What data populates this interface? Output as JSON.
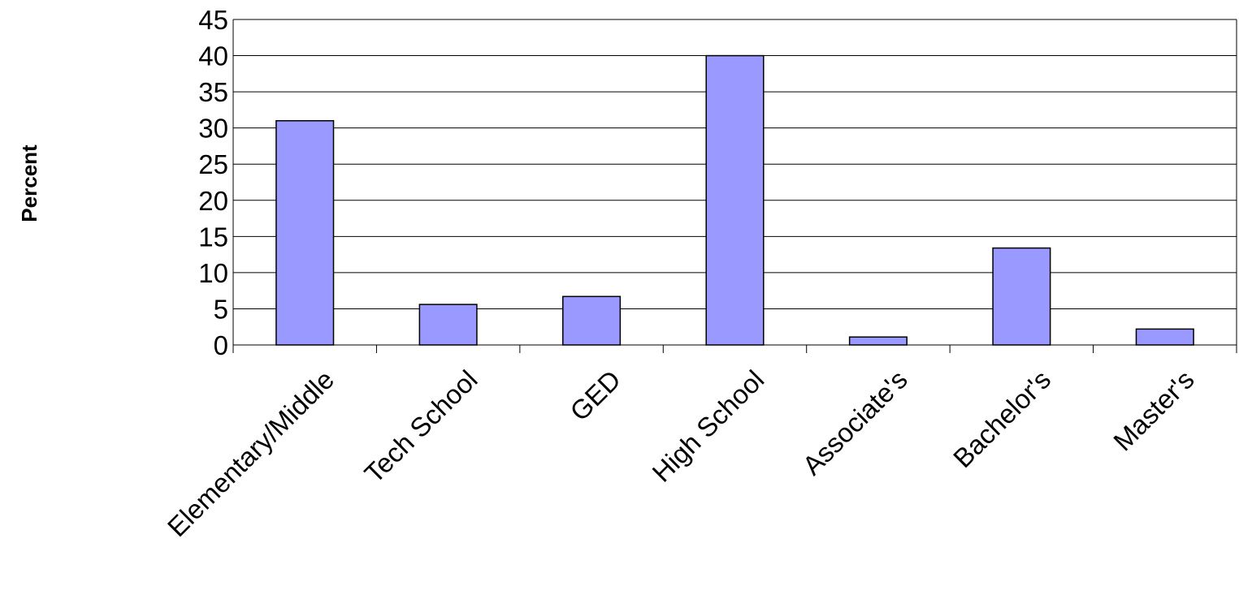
{
  "chart_data": {
    "type": "bar",
    "title": "",
    "xlabel": "",
    "ylabel": "Percent",
    "categories": [
      "Elementary/Middle",
      "Tech School",
      "GED",
      "High School",
      "Associate's",
      "Bachelor's",
      "Master's"
    ],
    "values": [
      31,
      5.6,
      6.7,
      40,
      1.1,
      13.4,
      2.2
    ],
    "ylim": [
      0,
      45
    ],
    "yticks": [
      "0",
      "5",
      "10",
      "15",
      "20",
      "25",
      "30",
      "35",
      "40",
      "45"
    ],
    "grid": true,
    "legend": "none",
    "colors": {
      "bar_fill": "#9999ff",
      "bar_stroke": "#000000",
      "grid": "#000000"
    }
  }
}
